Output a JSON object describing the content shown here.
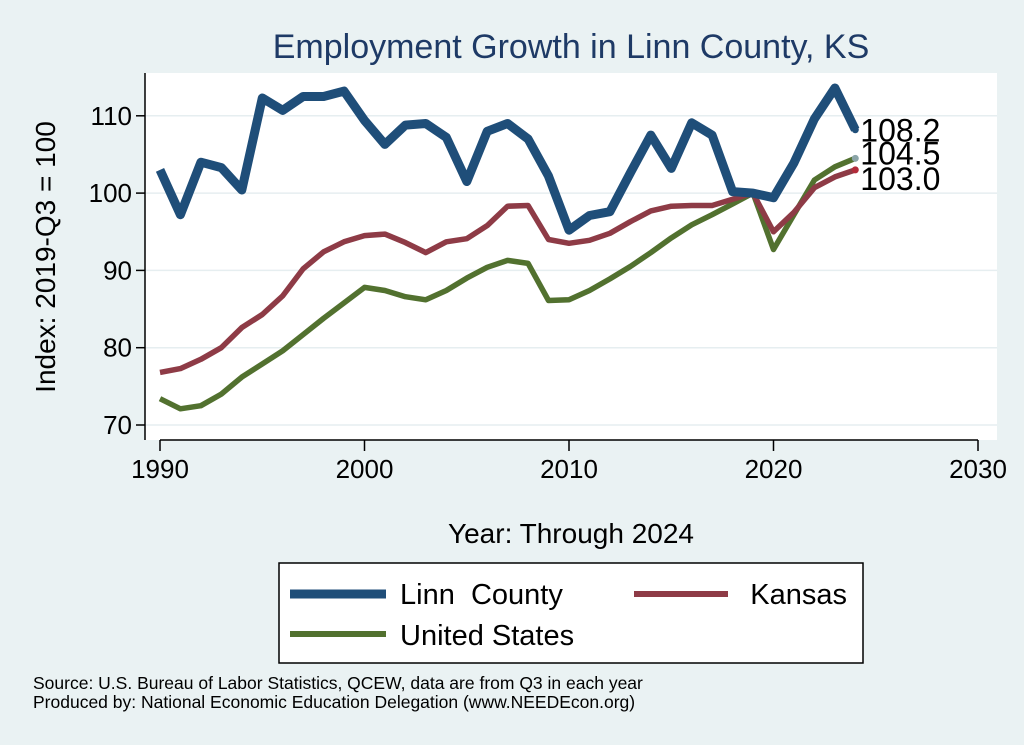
{
  "chart_data": {
    "type": "line",
    "title": "Employment Growth in Linn County, KS",
    "xlabel": "Year: Through 2024",
    "ylabel": "Index: 2019-Q3 = 100",
    "xlim": [
      1990,
      2030
    ],
    "ylim": [
      68,
      114
    ],
    "x_ticks": [
      1990,
      2000,
      2010,
      2020,
      2030
    ],
    "y_ticks": [
      70,
      80,
      90,
      100,
      110
    ],
    "grid": true,
    "legend_position": "bottom",
    "x": [
      1990,
      1991,
      1992,
      1993,
      1994,
      1995,
      1996,
      1997,
      1998,
      1999,
      2000,
      2001,
      2002,
      2003,
      2004,
      2005,
      2006,
      2007,
      2008,
      2009,
      2010,
      2011,
      2012,
      2013,
      2014,
      2015,
      2016,
      2017,
      2018,
      2019,
      2020,
      2021,
      2022,
      2023,
      2024
    ],
    "series": [
      {
        "name": "Linn  County",
        "color": "#1f4e79",
        "values": [
          103.0,
          97.2,
          104.0,
          103.3,
          100.4,
          112.3,
          110.7,
          112.5,
          112.5,
          113.2,
          109.4,
          106.3,
          108.8,
          109.0,
          107.2,
          101.5,
          108.0,
          109.0,
          107.0,
          102.2,
          95.2,
          97.1,
          97.6,
          102.6,
          107.5,
          103.2,
          109.1,
          107.5,
          100.2,
          100.0,
          99.4,
          103.9,
          109.6,
          113.6,
          108.2
        ],
        "end_label": "108.2"
      },
      {
        "name": "Kansas",
        "color": "#8e3b46",
        "values": [
          76.8,
          77.3,
          78.5,
          80.0,
          82.6,
          84.3,
          86.7,
          90.2,
          92.4,
          93.7,
          94.5,
          94.7,
          93.6,
          92.3,
          93.7,
          94.1,
          95.8,
          98.3,
          98.4,
          94.0,
          93.5,
          93.9,
          94.8,
          96.3,
          97.7,
          98.3,
          98.4,
          98.4,
          99.2,
          100.0,
          95.0,
          97.5,
          100.7,
          102.1,
          103.0
        ],
        "end_label": "103.0"
      },
      {
        "name": "United States",
        "color": "#52712f",
        "values": [
          73.4,
          72.1,
          72.5,
          74.0,
          76.2,
          77.9,
          79.6,
          81.7,
          83.8,
          85.8,
          87.8,
          87.4,
          86.6,
          86.2,
          87.4,
          89.0,
          90.4,
          91.3,
          90.9,
          86.1,
          86.2,
          87.4,
          88.9,
          90.5,
          92.3,
          94.2,
          95.9,
          97.2,
          98.6,
          100.0,
          92.7,
          97.2,
          101.7,
          103.4,
          104.5
        ],
        "end_label": "104.5"
      }
    ]
  },
  "source": {
    "line1": "Source: U.S. Bureau of Labor Statistics, QCEW, data are from Q3 in each year",
    "line2": "Produced by: National Economic Education Delegation (www.NEEDEcon.org)"
  }
}
